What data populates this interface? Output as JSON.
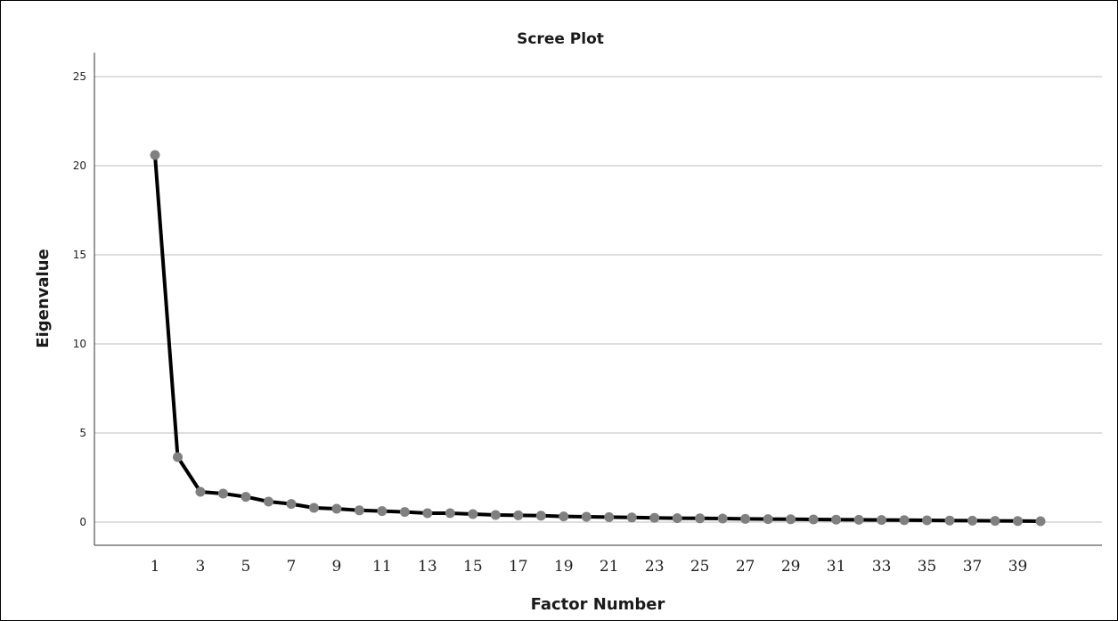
{
  "chart_data": {
    "type": "line",
    "title": "Scree Plot",
    "xlabel": "Factor Number",
    "ylabel": "Eigenvalue",
    "ylim": [
      0,
      25
    ],
    "yticks": [
      0,
      5,
      10,
      15,
      20,
      25
    ],
    "xticks": [
      1,
      3,
      5,
      7,
      9,
      11,
      13,
      15,
      17,
      19,
      21,
      23,
      25,
      27,
      29,
      31,
      33,
      35,
      37,
      39
    ],
    "grid": "horizontal",
    "line_color": "#000000",
    "marker_color": "#808080",
    "x": [
      1,
      2,
      3,
      4,
      5,
      6,
      7,
      8,
      9,
      10,
      11,
      12,
      13,
      14,
      15,
      16,
      17,
      18,
      19,
      20,
      21,
      22,
      23,
      24,
      25,
      26,
      27,
      28,
      29,
      30,
      31,
      32,
      33,
      34,
      35,
      36,
      37,
      38,
      39,
      40
    ],
    "values": [
      20.6,
      3.65,
      1.7,
      1.6,
      1.42,
      1.15,
      1.02,
      0.8,
      0.75,
      0.66,
      0.62,
      0.57,
      0.5,
      0.5,
      0.45,
      0.4,
      0.38,
      0.36,
      0.32,
      0.3,
      0.28,
      0.26,
      0.24,
      0.22,
      0.21,
      0.2,
      0.18,
      0.17,
      0.16,
      0.15,
      0.14,
      0.13,
      0.12,
      0.11,
      0.1,
      0.09,
      0.08,
      0.07,
      0.06,
      0.05
    ]
  }
}
